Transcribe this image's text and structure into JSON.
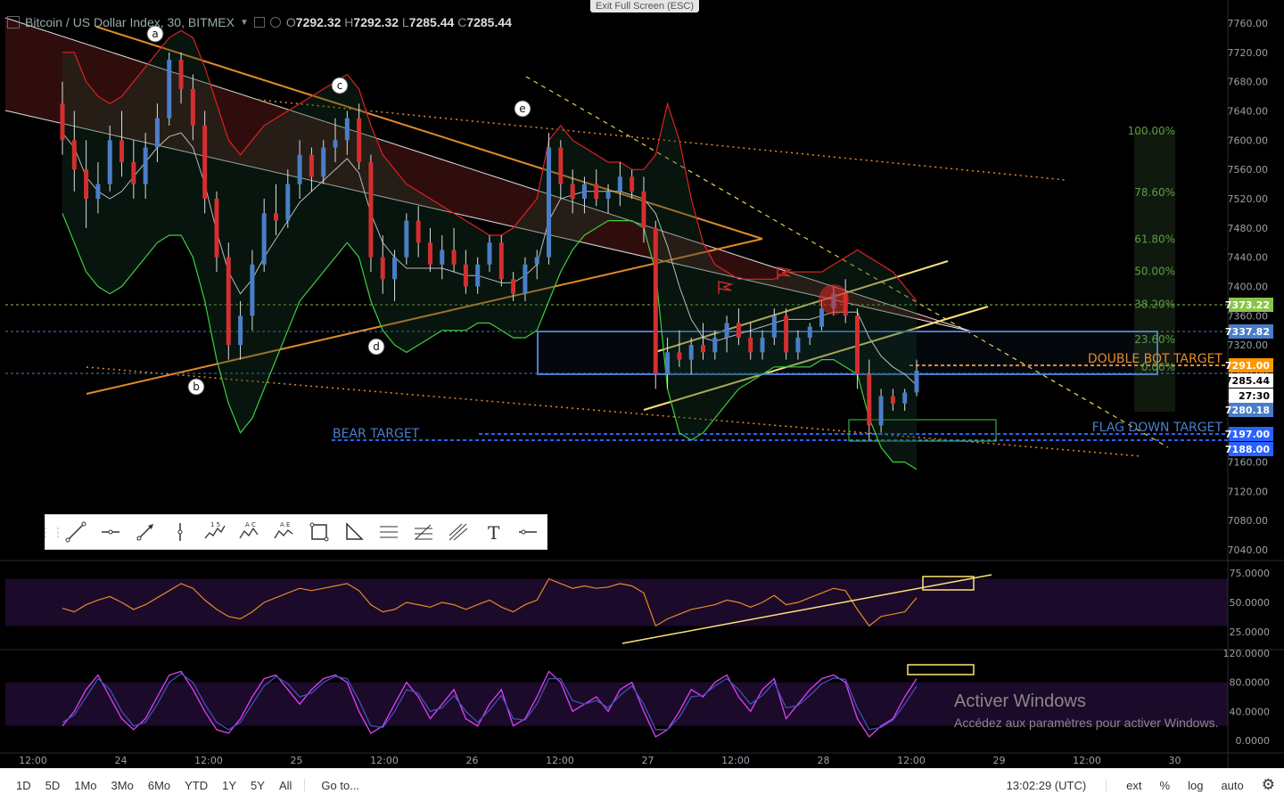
{
  "header": {
    "symbol": "Bitcoin / US Dollar Index, 30, BITMEX",
    "open_label": "O",
    "open": "7292.32",
    "high_label": "H",
    "high": "7292.32",
    "low_label": "L",
    "low": "7285.44",
    "close_label": "C",
    "close": "7285.44"
  },
  "fullscreen_tip": "Exit Full Screen (ESC)",
  "chart_data": [
    {
      "type": "line",
      "role": "main-price-pane",
      "y_axis": {
        "ticks": [
          7760,
          7720,
          7680,
          7640,
          7600,
          7560,
          7520,
          7480,
          7440,
          7400,
          7360,
          7320,
          7280,
          7240,
          7200,
          7160,
          7120,
          7080,
          7040
        ]
      },
      "price_tag_labels": [
        {
          "text": "7373.22",
          "color": "#8bc34a"
        },
        {
          "text": "7337.82",
          "color": "#4a7ec8"
        },
        {
          "text": "7291.00",
          "color": "#ff9800"
        },
        {
          "text": "7285.44",
          "color": "#000000"
        },
        {
          "text": "27:30",
          "color": "#000000"
        },
        {
          "text": "7280.18",
          "color": "#4a7ec8"
        },
        {
          "text": "7197.00",
          "color": "#2962ff"
        },
        {
          "text": "7188.00",
          "color": "#2962ff"
        }
      ],
      "x_axis_labels": [
        "12:00",
        "24",
        "12:00",
        "25",
        "12:00",
        "26",
        "12:00",
        "27",
        "12:00",
        "28",
        "12:00",
        "29",
        "12:00",
        "30"
      ],
      "wave_labels": [
        "a",
        "b",
        "c",
        "d",
        "e"
      ],
      "fib_levels": [
        {
          "label": "100.00%",
          "price": 7603
        },
        {
          "label": "78.60%",
          "price": 7519
        },
        {
          "label": "61.80%",
          "price": 7455
        },
        {
          "label": "50.00%",
          "price": 7411
        },
        {
          "label": "38.20%",
          "price": 7366
        },
        {
          "label": "23.60%",
          "price": 7318
        },
        {
          "label": "0.00%",
          "price": 7280
        }
      ],
      "annotations": [
        "DOUBLE BOT TARGET",
        "FLAG DOWN TARGET",
        "BEAR TARGET"
      ],
      "candles": [
        [
          7650,
          7680,
          7580,
          7600
        ],
        [
          7600,
          7640,
          7530,
          7560
        ],
        [
          7560,
          7600,
          7480,
          7520
        ],
        [
          7520,
          7570,
          7500,
          7540
        ],
        [
          7540,
          7620,
          7530,
          7600
        ],
        [
          7600,
          7640,
          7550,
          7570
        ],
        [
          7570,
          7600,
          7520,
          7540
        ],
        [
          7540,
          7610,
          7520,
          7590
        ],
        [
          7590,
          7650,
          7570,
          7630
        ],
        [
          7630,
          7720,
          7620,
          7710
        ],
        [
          7710,
          7720,
          7650,
          7670
        ],
        [
          7670,
          7690,
          7600,
          7620
        ],
        [
          7620,
          7640,
          7500,
          7520
        ],
        [
          7520,
          7530,
          7420,
          7440
        ],
        [
          7440,
          7460,
          7300,
          7320
        ],
        [
          7320,
          7380,
          7300,
          7360
        ],
        [
          7360,
          7450,
          7340,
          7430
        ],
        [
          7430,
          7520,
          7420,
          7500
        ],
        [
          7500,
          7540,
          7470,
          7490
        ],
        [
          7490,
          7560,
          7480,
          7540
        ],
        [
          7540,
          7600,
          7520,
          7580
        ],
        [
          7580,
          7590,
          7530,
          7550
        ],
        [
          7550,
          7600,
          7540,
          7590
        ],
        [
          7590,
          7630,
          7570,
          7600
        ],
        [
          7600,
          7640,
          7580,
          7630
        ],
        [
          7630,
          7650,
          7560,
          7570
        ],
        [
          7570,
          7580,
          7420,
          7440
        ],
        [
          7440,
          7470,
          7390,
          7410
        ],
        [
          7410,
          7450,
          7380,
          7440
        ],
        [
          7440,
          7500,
          7430,
          7490
        ],
        [
          7490,
          7510,
          7440,
          7460
        ],
        [
          7460,
          7480,
          7420,
          7430
        ],
        [
          7430,
          7470,
          7410,
          7450
        ],
        [
          7450,
          7480,
          7420,
          7430
        ],
        [
          7430,
          7450,
          7390,
          7400
        ],
        [
          7400,
          7440,
          7390,
          7430
        ],
        [
          7430,
          7470,
          7420,
          7460
        ],
        [
          7460,
          7470,
          7400,
          7410
        ],
        [
          7410,
          7420,
          7380,
          7390
        ],
        [
          7390,
          7440,
          7380,
          7430
        ],
        [
          7430,
          7450,
          7410,
          7440
        ],
        [
          7440,
          7610,
          7430,
          7590
        ],
        [
          7590,
          7600,
          7520,
          7540
        ],
        [
          7540,
          7560,
          7500,
          7520
        ],
        [
          7520,
          7550,
          7500,
          7540
        ],
        [
          7540,
          7560,
          7510,
          7520
        ],
        [
          7520,
          7540,
          7500,
          7530
        ],
        [
          7530,
          7570,
          7510,
          7550
        ],
        [
          7550,
          7560,
          7520,
          7530
        ],
        [
          7530,
          7550,
          7460,
          7480
        ],
        [
          7480,
          7490,
          7260,
          7280
        ],
        [
          7280,
          7330,
          7260,
          7310
        ],
        [
          7310,
          7340,
          7290,
          7300
        ],
        [
          7300,
          7330,
          7280,
          7320
        ],
        [
          7320,
          7350,
          7300,
          7310
        ],
        [
          7310,
          7340,
          7300,
          7330
        ],
        [
          7330,
          7360,
          7310,
          7350
        ],
        [
          7350,
          7370,
          7320,
          7330
        ],
        [
          7330,
          7350,
          7300,
          7310
        ],
        [
          7310,
          7340,
          7300,
          7330
        ],
        [
          7330,
          7370,
          7320,
          7360
        ],
        [
          7360,
          7370,
          7300,
          7310
        ],
        [
          7310,
          7340,
          7300,
          7330
        ],
        [
          7330,
          7350,
          7320,
          7345
        ],
        [
          7345,
          7380,
          7340,
          7370
        ],
        [
          7370,
          7400,
          7360,
          7390
        ],
        [
          7390,
          7410,
          7350,
          7360
        ],
        [
          7360,
          7370,
          7260,
          7280
        ],
        [
          7280,
          7300,
          7190,
          7210
        ],
        [
          7210,
          7260,
          7200,
          7250
        ],
        [
          7250,
          7260,
          7230,
          7240
        ],
        [
          7240,
          7260,
          7230,
          7255
        ],
        [
          7255,
          7300,
          7250,
          7285
        ]
      ],
      "upper_band": [
        7720,
        7720,
        7680,
        7660,
        7650,
        7660,
        7680,
        7700,
        7720,
        7740,
        7750,
        7740,
        7700,
        7650,
        7600,
        7580,
        7600,
        7620,
        7630,
        7640,
        7650,
        7660,
        7670,
        7680,
        7690,
        7670,
        7620,
        7580,
        7560,
        7540,
        7530,
        7520,
        7510,
        7500,
        7490,
        7480,
        7470,
        7470,
        7480,
        7500,
        7520,
        7600,
        7620,
        7600,
        7590,
        7580,
        7570,
        7570,
        7560,
        7560,
        7580,
        7650,
        7600,
        7520,
        7460,
        7430,
        7420,
        7410,
        7410,
        7410,
        7410,
        7420,
        7420,
        7420,
        7420,
        7430,
        7440,
        7450,
        7440,
        7430,
        7420,
        7400,
        7380
      ],
      "lower_band": [
        7500,
        7460,
        7420,
        7400,
        7390,
        7400,
        7420,
        7440,
        7460,
        7470,
        7470,
        7440,
        7380,
        7300,
        7240,
        7200,
        7220,
        7260,
        7300,
        7340,
        7380,
        7400,
        7420,
        7440,
        7460,
        7440,
        7380,
        7340,
        7320,
        7310,
        7320,
        7330,
        7340,
        7340,
        7340,
        7350,
        7350,
        7340,
        7330,
        7330,
        7340,
        7380,
        7420,
        7450,
        7470,
        7480,
        7490,
        7490,
        7490,
        7480,
        7420,
        7260,
        7200,
        7190,
        7200,
        7220,
        7240,
        7260,
        7270,
        7280,
        7290,
        7290,
        7290,
        7290,
        7300,
        7300,
        7290,
        7280,
        7220,
        7180,
        7160,
        7160,
        7150
      ],
      "basis": [
        7610,
        7590,
        7550,
        7530,
        7520,
        7530,
        7550,
        7570,
        7590,
        7605,
        7610,
        7590,
        7540,
        7475,
        7420,
        7390,
        7410,
        7440,
        7465,
        7490,
        7515,
        7530,
        7545,
        7560,
        7575,
        7555,
        7500,
        7460,
        7440,
        7425,
        7425,
        7425,
        7425,
        7420,
        7415,
        7415,
        7410,
        7405,
        7405,
        7415,
        7430,
        7490,
        7520,
        7525,
        7530,
        7530,
        7530,
        7530,
        7525,
        7520,
        7500,
        7455,
        7400,
        7355,
        7330,
        7325,
        7330,
        7335,
        7340,
        7345,
        7350,
        7355,
        7355,
        7355,
        7360,
        7365,
        7365,
        7365,
        7330,
        7305,
        7290,
        7280,
        7265
      ]
    },
    {
      "type": "line",
      "role": "rsi-pane",
      "y_axis": {
        "ticks": [
          75,
          50,
          25
        ],
        "tick_labels": [
          "75.0000",
          "50.0000",
          "25.0000"
        ]
      },
      "band": [
        30,
        70
      ],
      "series": [
        {
          "values": [
            45,
            42,
            48,
            52,
            55,
            50,
            44,
            48,
            54,
            60,
            66,
            62,
            52,
            44,
            38,
            36,
            42,
            50,
            54,
            58,
            62,
            60,
            62,
            64,
            66,
            60,
            48,
            42,
            44,
            50,
            48,
            46,
            50,
            48,
            44,
            48,
            52,
            46,
            42,
            48,
            52,
            70,
            66,
            62,
            64,
            62,
            63,
            66,
            64,
            58,
            30,
            36,
            40,
            44,
            46,
            48,
            52,
            50,
            46,
            50,
            56,
            48,
            50,
            54,
            58,
            62,
            60,
            44,
            30,
            38,
            40,
            42,
            54
          ]
        }
      ]
    },
    {
      "type": "line",
      "role": "stoch-rsi-pane",
      "y_axis": {
        "ticks": [
          120,
          80,
          40,
          0
        ],
        "tick_labels": [
          "120.0000",
          "80.0000",
          "40.0000",
          "0.0000"
        ]
      },
      "band": [
        20,
        80
      ],
      "series": [
        {
          "color": "#e040fb",
          "values": [
            20,
            40,
            70,
            90,
            60,
            30,
            15,
            30,
            60,
            90,
            95,
            70,
            40,
            15,
            10,
            30,
            60,
            85,
            90,
            70,
            50,
            70,
            85,
            90,
            80,
            40,
            10,
            20,
            50,
            80,
            60,
            30,
            50,
            70,
            30,
            20,
            50,
            70,
            20,
            30,
            60,
            95,
            80,
            40,
            50,
            60,
            40,
            70,
            80,
            40,
            5,
            15,
            40,
            70,
            60,
            80,
            90,
            60,
            40,
            70,
            85,
            30,
            50,
            70,
            85,
            90,
            80,
            30,
            5,
            20,
            30,
            60,
            85
          ]
        },
        {
          "color": "#3f51b5",
          "values": [
            25,
            35,
            60,
            85,
            70,
            40,
            20,
            25,
            50,
            80,
            92,
            80,
            50,
            25,
            15,
            25,
            50,
            75,
            88,
            78,
            60,
            65,
            80,
            88,
            85,
            55,
            20,
            18,
            40,
            70,
            65,
            40,
            45,
            62,
            40,
            25,
            42,
            62,
            30,
            28,
            50,
            85,
            85,
            55,
            50,
            55,
            45,
            62,
            75,
            50,
            15,
            15,
            32,
            60,
            62,
            75,
            85,
            70,
            50,
            62,
            80,
            45,
            48,
            62,
            78,
            86,
            84,
            45,
            15,
            18,
            28,
            50,
            75
          ]
        }
      ]
    }
  ],
  "toolbar": {
    "tools": [
      {
        "name": "trend-line-tool"
      },
      {
        "name": "horizontal-ray-tool"
      },
      {
        "name": "arrow-tool"
      },
      {
        "name": "vertical-line-tool"
      },
      {
        "name": "elliott-impulse-tool",
        "label": "1 5"
      },
      {
        "name": "elliott-correction-tool",
        "label": "A C"
      },
      {
        "name": "elliott-triangle-tool",
        "label": "A E"
      },
      {
        "name": "rectangle-tool"
      },
      {
        "name": "triangle-tool"
      },
      {
        "name": "parallel-channel-tool"
      },
      {
        "name": "fib-retracement-tool"
      },
      {
        "name": "pitchfork-tool"
      },
      {
        "name": "text-tool",
        "label": "T"
      },
      {
        "name": "horizontal-line-tool"
      }
    ]
  },
  "bottom": {
    "ranges": [
      "1D",
      "5D",
      "1Mo",
      "3Mo",
      "6Mo",
      "YTD",
      "1Y",
      "5Y",
      "All"
    ],
    "goto": "Go to...",
    "time": "13:02:29 (UTC)",
    "ext": "ext",
    "percent": "%",
    "log": "log",
    "auto": "auto"
  },
  "watermark": {
    "title": "Activer Windows",
    "subtitle": "Accédez aux paramètres pour activer Windows."
  },
  "colors": {
    "bull": "#4a7ec8",
    "bear": "#d32f2f",
    "orange": "#e38b2a",
    "yellow": "#ffe27a",
    "green": "#3fcf3f",
    "bb_upper": "#e02020"
  }
}
